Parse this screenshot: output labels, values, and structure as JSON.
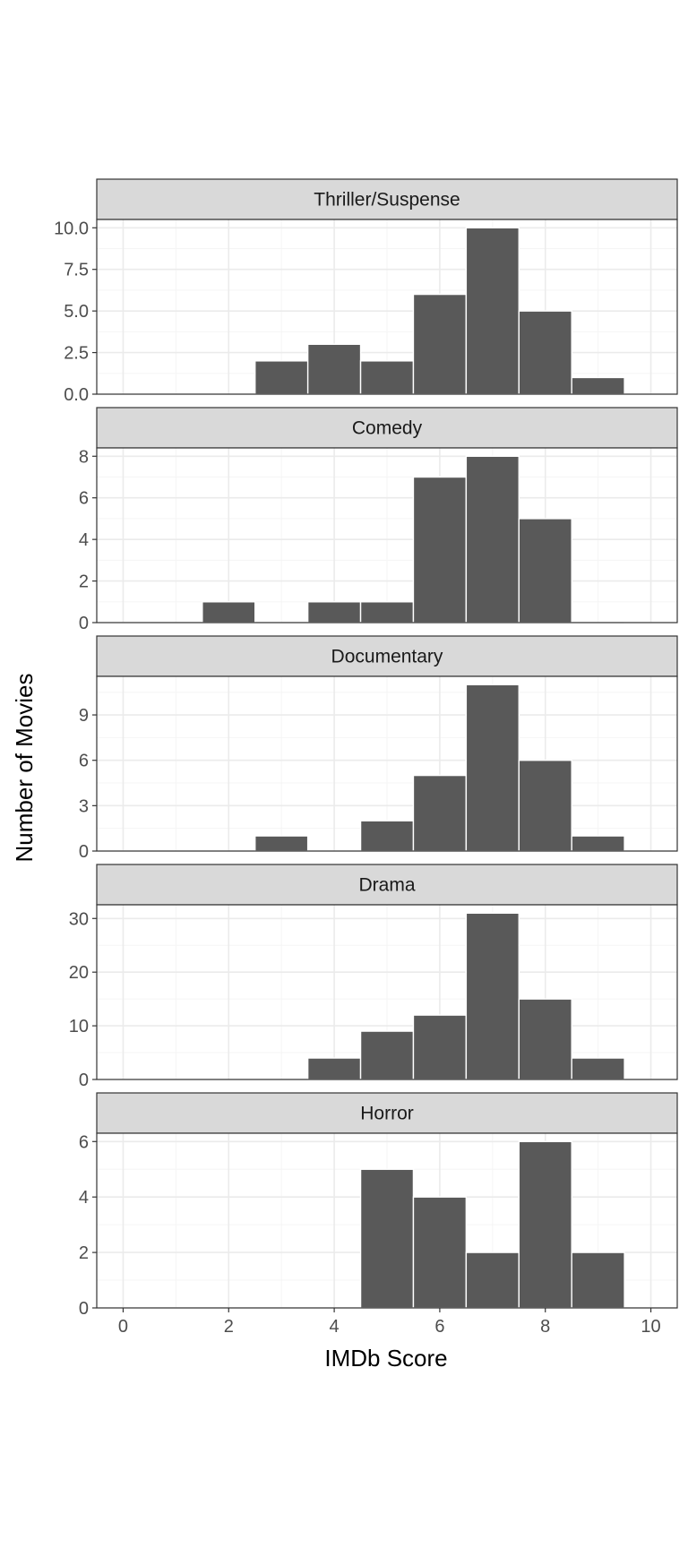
{
  "chart_data": {
    "type": "bar",
    "subtype": "faceted-histogram",
    "xlabel": "IMDb Score",
    "ylabel": "Number of Movies",
    "xlim": [
      -0.5,
      10.5
    ],
    "x_ticks": [
      0,
      2,
      4,
      6,
      8,
      10
    ],
    "bin_width": 1,
    "grid": true,
    "colors": {
      "bar_fill": "#595959",
      "bar_stroke": "#ffffff",
      "strip_fill": "#d9d9d9",
      "panel_border": "#333333",
      "grid_major": "#ebebeb",
      "grid_minor": "#f5f5f5"
    },
    "facets": [
      {
        "name": "Thriller/Suspense",
        "ylim": [
          0,
          10.5
        ],
        "y_ticks": [
          0,
          2.5,
          5,
          7.5,
          10
        ],
        "y_tick_labels": [
          "0.0",
          "2.5",
          "5.0",
          "7.5",
          "10.0"
        ],
        "bins": [
          {
            "x": 0,
            "count": 0
          },
          {
            "x": 3,
            "count": 2
          },
          {
            "x": 4,
            "count": 3
          },
          {
            "x": 5,
            "count": 2
          },
          {
            "x": 6,
            "count": 6
          },
          {
            "x": 7,
            "count": 10
          },
          {
            "x": 8,
            "count": 5
          },
          {
            "x": 9,
            "count": 1
          }
        ]
      },
      {
        "name": "Comedy",
        "ylim": [
          0,
          8.4
        ],
        "y_ticks": [
          0,
          2,
          4,
          6,
          8
        ],
        "y_tick_labels": [
          "0",
          "2",
          "4",
          "6",
          "8"
        ],
        "bins": [
          {
            "x": 0,
            "count": 0
          },
          {
            "x": 2,
            "count": 1
          },
          {
            "x": 4,
            "count": 1
          },
          {
            "x": 5,
            "count": 1
          },
          {
            "x": 6,
            "count": 7
          },
          {
            "x": 7,
            "count": 8
          },
          {
            "x": 8,
            "count": 5
          },
          {
            "x": 10,
            "count": 0
          }
        ]
      },
      {
        "name": "Documentary",
        "ylim": [
          0,
          11.55
        ],
        "y_ticks": [
          0,
          3,
          6,
          9
        ],
        "y_tick_labels": [
          "0",
          "3",
          "6",
          "9"
        ],
        "bins": [
          {
            "x": 0,
            "count": 0
          },
          {
            "x": 3,
            "count": 1
          },
          {
            "x": 5,
            "count": 2
          },
          {
            "x": 6,
            "count": 5
          },
          {
            "x": 7,
            "count": 11
          },
          {
            "x": 8,
            "count": 6
          },
          {
            "x": 9,
            "count": 1
          }
        ]
      },
      {
        "name": "Drama",
        "ylim": [
          0,
          32.55
        ],
        "y_ticks": [
          0,
          10,
          20,
          30
        ],
        "y_tick_labels": [
          "0",
          "10",
          "20",
          "30"
        ],
        "bins": [
          {
            "x": 0,
            "count": 0
          },
          {
            "x": 4,
            "count": 4
          },
          {
            "x": 5,
            "count": 9
          },
          {
            "x": 6,
            "count": 12
          },
          {
            "x": 7,
            "count": 31
          },
          {
            "x": 8,
            "count": 15
          },
          {
            "x": 9,
            "count": 4
          }
        ]
      },
      {
        "name": "Horror",
        "ylim": [
          0,
          6.3
        ],
        "y_ticks": [
          0,
          2,
          4,
          6
        ],
        "y_tick_labels": [
          "0",
          "2",
          "4",
          "6"
        ],
        "bins": [
          {
            "x": 0,
            "count": 0
          },
          {
            "x": 5,
            "count": 5
          },
          {
            "x": 6,
            "count": 4
          },
          {
            "x": 7,
            "count": 2
          },
          {
            "x": 8,
            "count": 6
          },
          {
            "x": 9,
            "count": 2
          }
        ]
      }
    ]
  }
}
